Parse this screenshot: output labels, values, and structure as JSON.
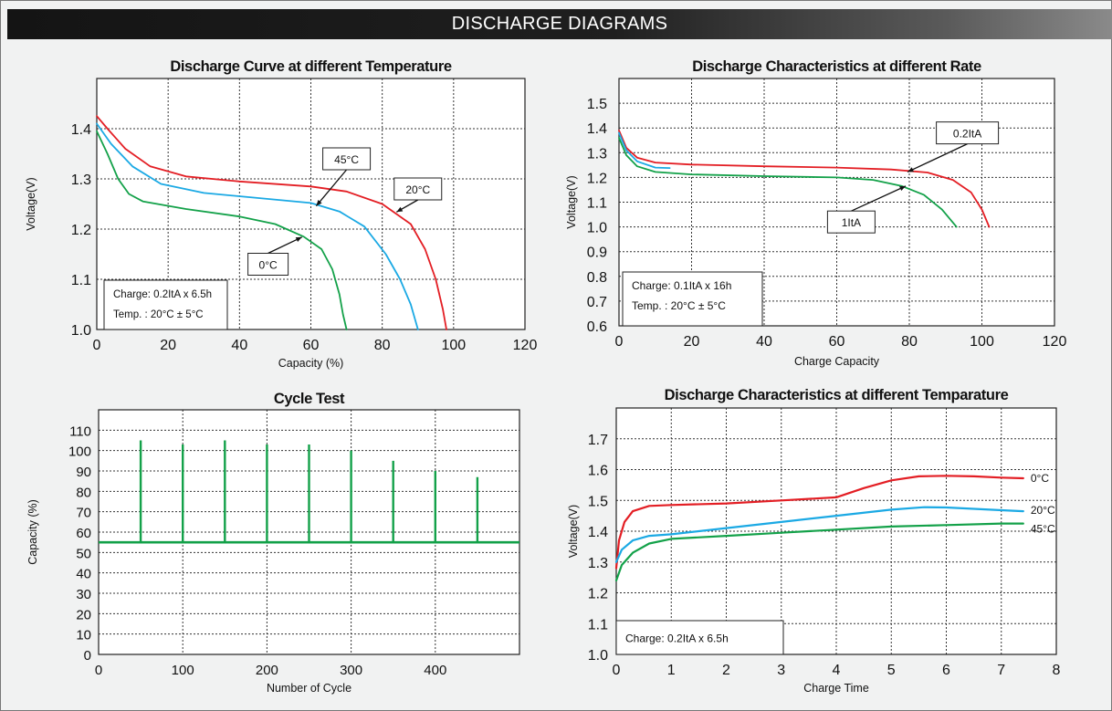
{
  "header": {
    "title": "DISCHARGE DIAGRAMS"
  },
  "colors": {
    "red": "#e31e24",
    "blue": "#1ba9e4",
    "green": "#13a149",
    "grid": "#333333",
    "banner": "#1a1a1a"
  },
  "chart_data": [
    {
      "id": "temp-curve",
      "type": "line",
      "title": "Discharge Curve at different Temperature",
      "xlabel": "Capacity (%)",
      "ylabel": "Voltage(V)",
      "xlim": [
        0,
        120
      ],
      "ylim": [
        1.0,
        1.5
      ],
      "xticks": [
        "0",
        "20",
        "40",
        "60",
        "80",
        "100",
        "120"
      ],
      "yticks": [
        "1.0",
        "1.1",
        "1.2",
        "1.3",
        "1.4"
      ],
      "grid": true,
      "note_lines": [
        "Charge: 0.2ItA x 6.5h",
        "Temp. : 20°C ± 5°C"
      ],
      "series": [
        {
          "name": "45°C",
          "color": "#e31e24",
          "points": [
            [
              0,
              1.425
            ],
            [
              3,
              1.4
            ],
            [
              8,
              1.36
            ],
            [
              15,
              1.325
            ],
            [
              25,
              1.305
            ],
            [
              40,
              1.295
            ],
            [
              60,
              1.285
            ],
            [
              70,
              1.275
            ],
            [
              80,
              1.25
            ],
            [
              88,
              1.21
            ],
            [
              92,
              1.16
            ],
            [
              95,
              1.1
            ],
            [
              97,
              1.04
            ],
            [
              98,
              1.0
            ]
          ]
        },
        {
          "name": "20°C",
          "color": "#1ba9e4",
          "points": [
            [
              0,
              1.41
            ],
            [
              4,
              1.37
            ],
            [
              10,
              1.325
            ],
            [
              18,
              1.29
            ],
            [
              30,
              1.272
            ],
            [
              45,
              1.262
            ],
            [
              60,
              1.252
            ],
            [
              68,
              1.235
            ],
            [
              75,
              1.205
            ],
            [
              81,
              1.15
            ],
            [
              85,
              1.1
            ],
            [
              88,
              1.05
            ],
            [
              90,
              1.0
            ]
          ]
        },
        {
          "name": "0°C",
          "color": "#13a149",
          "points": [
            [
              0,
              1.395
            ],
            [
              3,
              1.35
            ],
            [
              6,
              1.3
            ],
            [
              9,
              1.27
            ],
            [
              13,
              1.255
            ],
            [
              25,
              1.24
            ],
            [
              40,
              1.225
            ],
            [
              50,
              1.21
            ],
            [
              58,
              1.185
            ],
            [
              63,
              1.16
            ],
            [
              66,
              1.12
            ],
            [
              68,
              1.07
            ],
            [
              69,
              1.03
            ],
            [
              70,
              1.0
            ]
          ]
        }
      ],
      "annotations": [
        {
          "label": "45°C",
          "at": [
            70,
            1.34
          ],
          "target": [
            61.5,
            1.246
          ]
        },
        {
          "label": "20°C",
          "at": [
            90,
            1.28
          ],
          "target": [
            84,
            1.234
          ]
        },
        {
          "label": "0°C",
          "at": [
            48,
            1.13
          ],
          "target": [
            57.5,
            1.184
          ]
        }
      ]
    },
    {
      "id": "rate-curve",
      "type": "line",
      "title": "Discharge Characteristics at different Rate",
      "xlabel": "Charge Capacity",
      "ylabel": "Voltage(V)",
      "xlim": [
        0,
        120
      ],
      "ylim": [
        0.6,
        1.6
      ],
      "xticks": [
        "0",
        "20",
        "40",
        "60",
        "80",
        "100",
        "120"
      ],
      "yticks": [
        "0.6",
        "0.7",
        "0.8",
        "0.9",
        "1.0",
        "1.1",
        "1.2",
        "1.3",
        "1.4",
        "1.5"
      ],
      "grid": true,
      "note_lines": [
        "Charge: 0.1ItA x 16h",
        "Temp. : 20°C ± 5°C"
      ],
      "series": [
        {
          "name": "0.2ItA",
          "color": "#e31e24",
          "points": [
            [
              0,
              1.39
            ],
            [
              2,
              1.32
            ],
            [
              5,
              1.28
            ],
            [
              10,
              1.26
            ],
            [
              20,
              1.252
            ],
            [
              40,
              1.245
            ],
            [
              60,
              1.24
            ],
            [
              75,
              1.232
            ],
            [
              85,
              1.22
            ],
            [
              92,
              1.19
            ],
            [
              97,
              1.14
            ],
            [
              100,
              1.07
            ],
            [
              102,
              1.0
            ]
          ]
        },
        {
          "name": "1ItA",
          "color": "#13a149",
          "points": [
            [
              0,
              1.36
            ],
            [
              2,
              1.29
            ],
            [
              5,
              1.245
            ],
            [
              10,
              1.222
            ],
            [
              20,
              1.212
            ],
            [
              40,
              1.205
            ],
            [
              60,
              1.2
            ],
            [
              70,
              1.19
            ],
            [
              78,
              1.165
            ],
            [
              84,
              1.13
            ],
            [
              89,
              1.07
            ],
            [
              93,
              1.0
            ]
          ]
        },
        {
          "name": "",
          "color": "#1ba9e4",
          "points": [
            [
              0,
              1.38
            ],
            [
              2,
              1.31
            ],
            [
              5,
              1.265
            ],
            [
              10,
              1.24
            ],
            [
              14,
              1.238
            ]
          ]
        }
      ],
      "annotations": [
        {
          "label": "0.2ItA",
          "at": [
            96,
            1.38
          ],
          "target": [
            79.5,
            1.222
          ]
        },
        {
          "label": "1ItA",
          "at": [
            64,
            1.02
          ],
          "target": [
            79,
            1.165
          ]
        }
      ]
    },
    {
      "id": "cycle-test",
      "type": "bar",
      "title": "Cycle Test",
      "xlabel": "Number of Cycle",
      "ylabel": "Capacity (%)",
      "xlim": [
        0,
        500
      ],
      "ylim": [
        0,
        120
      ],
      "xticks": [
        "0",
        "100",
        "200",
        "300",
        "400"
      ],
      "yticks": [
        "0",
        "10",
        "20",
        "30",
        "40",
        "50",
        "60",
        "70",
        "80",
        "90",
        "100",
        "110"
      ],
      "grid": true,
      "baseline": 55,
      "series": [
        {
          "name": "",
          "color": "#13a149",
          "x": [
            50,
            100,
            150,
            200,
            250,
            300,
            350,
            400,
            450
          ],
          "values": [
            105,
            103,
            105,
            103,
            103,
            100,
            95,
            90,
            87
          ]
        }
      ]
    },
    {
      "id": "temp-time",
      "type": "line",
      "title": "Discharge Characteristics at different Temparature",
      "xlabel": "Charge Time",
      "ylabel": "Voltage(V)",
      "xlim": [
        0,
        8
      ],
      "ylim": [
        1.0,
        1.8
      ],
      "xticks": [
        "0",
        "1",
        "2",
        "3",
        "4",
        "5",
        "6",
        "7",
        "8"
      ],
      "yticks": [
        "1.0",
        "1.1",
        "1.2",
        "1.3",
        "1.4",
        "1.5",
        "1.6",
        "1.7"
      ],
      "grid": true,
      "note_lines": [
        "Charge: 0.2ItA x 6.5h"
      ],
      "series": [
        {
          "name": "0°C",
          "color": "#e31e24",
          "points": [
            [
              0,
              1.28
            ],
            [
              0.05,
              1.37
            ],
            [
              0.15,
              1.43
            ],
            [
              0.3,
              1.465
            ],
            [
              0.6,
              1.482
            ],
            [
              1,
              1.485
            ],
            [
              2,
              1.49
            ],
            [
              3,
              1.5
            ],
            [
              4,
              1.51
            ],
            [
              4.5,
              1.54
            ],
            [
              5,
              1.565
            ],
            [
              5.5,
              1.578
            ],
            [
              6,
              1.58
            ],
            [
              6.5,
              1.578
            ],
            [
              7,
              1.574
            ],
            [
              7.4,
              1.572
            ]
          ]
        },
        {
          "name": "20°C",
          "color": "#1ba9e4",
          "points": [
            [
              0,
              1.3
            ],
            [
              0.1,
              1.34
            ],
            [
              0.3,
              1.37
            ],
            [
              0.6,
              1.385
            ],
            [
              1,
              1.39
            ],
            [
              2,
              1.41
            ],
            [
              3,
              1.43
            ],
            [
              4,
              1.45
            ],
            [
              5,
              1.47
            ],
            [
              5.6,
              1.478
            ],
            [
              6,
              1.477
            ],
            [
              7,
              1.468
            ],
            [
              7.4,
              1.465
            ]
          ]
        },
        {
          "name": "45°C",
          "color": "#13a149",
          "points": [
            [
              0,
              1.24
            ],
            [
              0.1,
              1.29
            ],
            [
              0.3,
              1.33
            ],
            [
              0.6,
              1.36
            ],
            [
              1,
              1.375
            ],
            [
              2,
              1.385
            ],
            [
              3,
              1.395
            ],
            [
              4,
              1.405
            ],
            [
              5,
              1.415
            ],
            [
              6,
              1.42
            ],
            [
              7,
              1.425
            ],
            [
              7.4,
              1.425
            ]
          ]
        }
      ]
    }
  ]
}
